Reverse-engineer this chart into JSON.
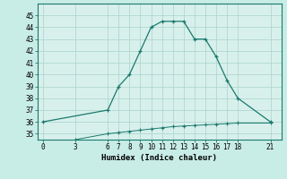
{
  "upper_x": [
    0,
    6,
    7,
    8,
    9,
    10,
    11,
    12,
    13,
    14,
    15,
    16,
    17,
    18,
    21
  ],
  "upper_y": [
    36,
    37,
    39,
    40,
    42,
    44,
    44.5,
    44.5,
    44.5,
    43,
    43,
    41.5,
    39.5,
    38,
    36
  ],
  "lower_x": [
    3,
    6,
    7,
    8,
    9,
    10,
    11,
    12,
    13,
    14,
    15,
    16,
    17,
    18,
    21
  ],
  "lower_y": [
    34.5,
    35,
    35.1,
    35.2,
    35.3,
    35.4,
    35.5,
    35.6,
    35.65,
    35.7,
    35.75,
    35.8,
    35.85,
    35.9,
    35.9
  ],
  "line_color": "#1a7a6e",
  "bg_color": "#c8ece6",
  "plot_bg": "#d8f0ec",
  "grid_color": "#b0d8d0",
  "xlabel": "Humidex (Indice chaleur)",
  "xticks": [
    0,
    3,
    6,
    7,
    8,
    9,
    10,
    11,
    12,
    13,
    14,
    15,
    16,
    17,
    18,
    21
  ],
  "yticks": [
    35,
    36,
    37,
    38,
    39,
    40,
    41,
    42,
    43,
    44,
    45
  ],
  "xlim": [
    -0.5,
    22
  ],
  "ylim": [
    34.5,
    46
  ]
}
